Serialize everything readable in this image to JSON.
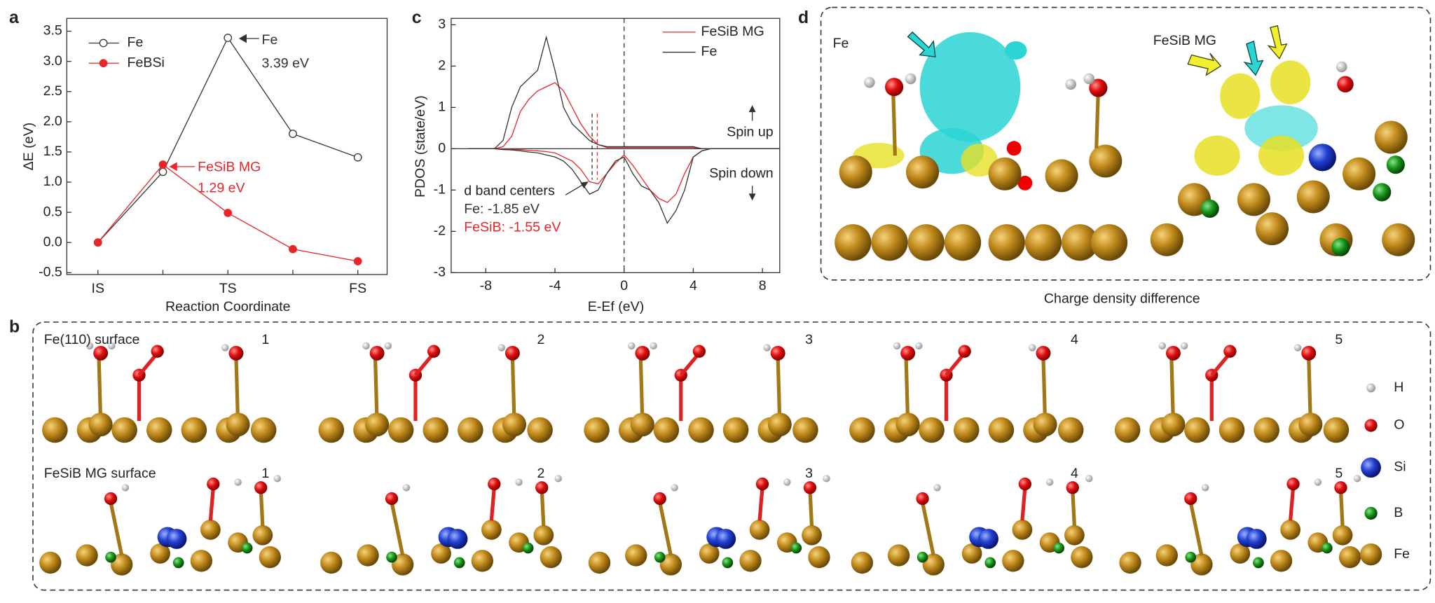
{
  "panel_labels": [
    "a",
    "b",
    "c",
    "d"
  ],
  "chart_data": [
    {
      "type": "line",
      "x_label": "Reaction Coordinate",
      "y_label": "ΔE (eV)",
      "categories": [
        "IS",
        null,
        "TS",
        null,
        "FS"
      ],
      "series": [
        {
          "name": "Fe",
          "color": "#333333",
          "marker": "open",
          "values": [
            0,
            1.17,
            3.39,
            1.8,
            1.41
          ]
        },
        {
          "name": "FeBSi",
          "color": "#e8262a",
          "marker": "filled",
          "values": [
            0,
            1.29,
            0.49,
            -0.11,
            -0.31
          ]
        }
      ],
      "ylim": [
        -0.5,
        3.5
      ],
      "yticks": [
        -0.5,
        {
          "value": 0,
          "label": "0.0"
        },
        0.5,
        {
          "value": 1,
          "label": "1.0"
        },
        1.5,
        {
          "value": 2,
          "label": "2.0"
        },
        2.5,
        {
          "value": 3,
          "label": "3.0"
        },
        3.5
      ],
      "annotations": [
        "Fe",
        "3.39 eV",
        "FeSiB MG",
        "1.29 eV"
      ]
    },
    {
      "type": "line",
      "x_label": "E-Ef (eV)",
      "y_label": "PDOS (state/eV)",
      "x": [
        -9,
        -8.5,
        -8,
        -7.5,
        -7,
        -6.5,
        -6,
        -5.5,
        -5,
        -4.5,
        -4,
        -3.5,
        -3,
        -2.5,
        -2,
        -1.5,
        -1,
        -0.5,
        0,
        0.5,
        1,
        1.5,
        2,
        2.5,
        3,
        3.5,
        4,
        4.5,
        5,
        5.5,
        6,
        6.5,
        7,
        7.5,
        8,
        8.5,
        9
      ],
      "series": [
        {
          "name": "FeSiB MG",
          "color": "#e8262a",
          "spin_up": [
            0,
            0,
            0,
            0,
            0.05,
            0.3,
            0.9,
            1.2,
            1.4,
            1.5,
            1.6,
            1.4,
            1.0,
            0.6,
            0.3,
            0.1,
            0.03,
            0.03,
            0.03,
            0.03,
            0.03,
            0.03,
            0.03,
            0.03,
            0.03,
            0.03,
            0.03,
            0,
            0,
            0,
            0,
            0,
            0,
            0,
            0,
            0,
            0
          ],
          "spin_down": [
            0,
            0,
            0,
            0,
            -0.01,
            -0.02,
            -0.02,
            -0.04,
            -0.05,
            -0.07,
            -0.1,
            -0.2,
            -0.3,
            -0.5,
            -0.8,
            -0.85,
            -0.6,
            -0.35,
            -0.15,
            -0.4,
            -0.7,
            -1.0,
            -1.2,
            -1.3,
            -1.1,
            -0.6,
            -0.2,
            -0.05,
            0,
            0,
            0,
            0,
            0,
            0,
            0,
            0,
            0
          ]
        },
        {
          "name": "Fe",
          "color": "#333333",
          "spin_up": [
            0,
            0,
            0,
            0,
            0.2,
            1.0,
            1.5,
            1.7,
            1.9,
            2.7,
            1.9,
            1.0,
            0.6,
            0.4,
            0.2,
            0.1,
            0.05,
            0.05,
            0.05,
            0.05,
            0.05,
            0.05,
            0.05,
            0.05,
            0.05,
            0.05,
            0.05,
            0,
            0,
            0,
            0,
            0,
            0,
            0,
            0,
            0,
            0
          ],
          "spin_down": [
            0,
            0,
            0,
            0,
            -0.02,
            -0.03,
            -0.05,
            -0.08,
            -0.1,
            -0.15,
            -0.2,
            -0.3,
            -0.5,
            -0.8,
            -1.1,
            -1.0,
            -0.6,
            -0.3,
            -0.2,
            -0.6,
            -0.9,
            -1.0,
            -1.3,
            -1.8,
            -1.5,
            -1.0,
            -0.2,
            -0.05,
            0,
            0,
            0,
            0,
            0,
            0,
            0,
            0,
            0
          ]
        }
      ],
      "xlim": [
        -10,
        9
      ],
      "xticks": [
        -8,
        -4,
        0,
        4,
        8
      ],
      "ylim": [
        -3,
        3
      ],
      "yticks": [
        -3,
        -2,
        -1,
        0,
        1,
        2,
        3
      ],
      "annotations": [
        "Spin up",
        "Spin down",
        "d band centers"
      ],
      "band_centers": [
        {
          "label": "Fe: -1.85 eV",
          "value": -1.85,
          "color": "#333333"
        },
        {
          "label": "FeSiB: -1.55 eV",
          "value": -1.55,
          "color": "#e8262a"
        }
      ]
    }
  ],
  "panel_b": {
    "rows": [
      {
        "title": "Fe(110) surface",
        "steps": [
          "1",
          "2",
          "3",
          "4",
          "5"
        ]
      },
      {
        "title": "FeSiB MG surface",
        "steps": [
          "1",
          "2",
          "3",
          "4",
          "5"
        ]
      }
    ],
    "legend": [
      "H",
      "O",
      "Si",
      "B",
      "Fe"
    ]
  },
  "panel_d": {
    "labels": [
      "Fe",
      "FeSiB MG"
    ],
    "caption": "Charge density difference"
  }
}
